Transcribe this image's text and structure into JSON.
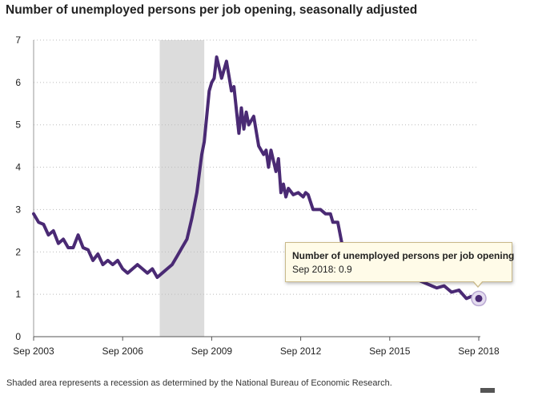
{
  "chart_data": {
    "type": "line",
    "title": "Number of unemployed persons per job opening, seasonally adjusted",
    "xlabel": "",
    "ylabel": "",
    "x_ticks": [
      "Sep 2003",
      "Sep 2006",
      "Sep 2009",
      "Sep 2012",
      "Sep 2015",
      "Sep 2018"
    ],
    "y_ticks": [
      0,
      1,
      2,
      3,
      4,
      5,
      6,
      7
    ],
    "ylim": [
      0,
      7
    ],
    "xlim": [
      "2003-09",
      "2018-09"
    ],
    "grid": "horizontal dotted",
    "recession": {
      "start": "2007-12",
      "end": "2009-06"
    },
    "series": [
      {
        "color": "#4a2a74",
        "points": [
          [
            "2003-09",
            2.9
          ],
          [
            "2003-11",
            2.7
          ],
          [
            "2004-01",
            2.65
          ],
          [
            "2004-03",
            2.4
          ],
          [
            "2004-05",
            2.5
          ],
          [
            "2004-07",
            2.2
          ],
          [
            "2004-09",
            2.3
          ],
          [
            "2004-11",
            2.1
          ],
          [
            "2005-01",
            2.1
          ],
          [
            "2005-03",
            2.4
          ],
          [
            "2005-05",
            2.1
          ],
          [
            "2005-07",
            2.05
          ],
          [
            "2005-09",
            1.8
          ],
          [
            "2005-11",
            1.95
          ],
          [
            "2006-01",
            1.7
          ],
          [
            "2006-03",
            1.8
          ],
          [
            "2006-05",
            1.7
          ],
          [
            "2006-07",
            1.8
          ],
          [
            "2006-09",
            1.6
          ],
          [
            "2006-11",
            1.5
          ],
          [
            "2007-01",
            1.6
          ],
          [
            "2007-03",
            1.7
          ],
          [
            "2007-05",
            1.6
          ],
          [
            "2007-07",
            1.5
          ],
          [
            "2007-09",
            1.6
          ],
          [
            "2007-11",
            1.4
          ],
          [
            "2008-01",
            1.5
          ],
          [
            "2008-03",
            1.6
          ],
          [
            "2008-05",
            1.7
          ],
          [
            "2008-07",
            1.9
          ],
          [
            "2008-09",
            2.1
          ],
          [
            "2008-11",
            2.3
          ],
          [
            "2009-01",
            2.8
          ],
          [
            "2009-03",
            3.4
          ],
          [
            "2009-05",
            4.3
          ],
          [
            "2009-06",
            4.6
          ],
          [
            "2009-08",
            5.8
          ],
          [
            "2009-09",
            6.0
          ],
          [
            "2009-10",
            6.1
          ],
          [
            "2009-11",
            6.6
          ],
          [
            "2010-01",
            6.1
          ],
          [
            "2010-03",
            6.5
          ],
          [
            "2010-05",
            5.8
          ],
          [
            "2010-06",
            5.9
          ],
          [
            "2010-08",
            4.8
          ],
          [
            "2010-09",
            5.4
          ],
          [
            "2010-10",
            4.9
          ],
          [
            "2010-11",
            5.3
          ],
          [
            "2010-12",
            5.0
          ],
          [
            "2011-02",
            5.2
          ],
          [
            "2011-04",
            4.5
          ],
          [
            "2011-06",
            4.3
          ],
          [
            "2011-07",
            4.4
          ],
          [
            "2011-08",
            4.0
          ],
          [
            "2011-09",
            4.4
          ],
          [
            "2011-11",
            3.9
          ],
          [
            "2011-12",
            4.2
          ],
          [
            "2012-01",
            3.4
          ],
          [
            "2012-02",
            3.6
          ],
          [
            "2012-03",
            3.3
          ],
          [
            "2012-04",
            3.5
          ],
          [
            "2012-06",
            3.35
          ],
          [
            "2012-08",
            3.4
          ],
          [
            "2012-10",
            3.3
          ],
          [
            "2012-11",
            3.4
          ],
          [
            "2012-12",
            3.35
          ],
          [
            "2013-02",
            3.0
          ],
          [
            "2013-05",
            3.0
          ],
          [
            "2013-07",
            2.9
          ],
          [
            "2013-09",
            2.9
          ],
          [
            "2013-10",
            2.7
          ],
          [
            "2013-12",
            2.7
          ],
          [
            "2014-02",
            2.1
          ],
          [
            "2017-02",
            1.2
          ],
          [
            "2017-04",
            1.15
          ],
          [
            "2017-07",
            1.2
          ],
          [
            "2017-10",
            1.05
          ],
          [
            "2018-01",
            1.1
          ],
          [
            "2018-04",
            0.9
          ],
          [
            "2018-06",
            0.95
          ],
          [
            "2018-09",
            0.9
          ]
        ]
      }
    ],
    "highlight": {
      "x": "2018-09",
      "y": 0.9
    }
  },
  "tooltip": {
    "title": "Number of unemployed persons per job opening",
    "value_text": "Sep 2018: 0.9"
  },
  "footnote": "Shaded area represents a recession as determined by the National Bureau of Economic Research.",
  "colors": {
    "line": "#4a2a74",
    "recession": "#dcdcdc",
    "grid": "#bbbbbb",
    "tooltip_bg": "#fffbe8",
    "tooltip_border": "#c9b98a"
  }
}
